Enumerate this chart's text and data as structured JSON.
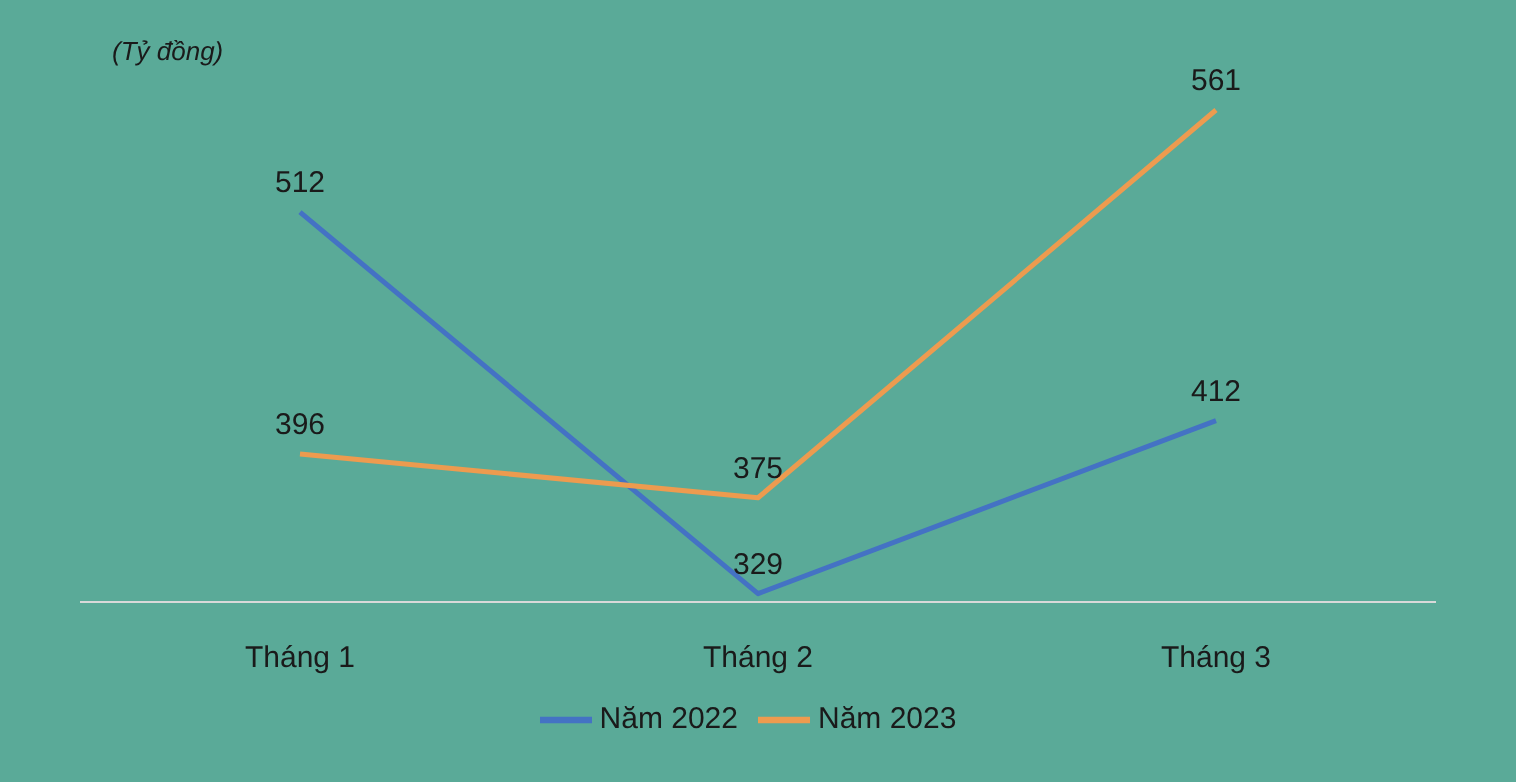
{
  "chart_data": {
    "type": "line",
    "ylabel": "(Tỷ đồng)",
    "categories": [
      "Tháng 1",
      "Tháng 2",
      "Tháng 3"
    ],
    "series": [
      {
        "name": "Năm 2022",
        "color": "#4472c4",
        "values": [
          512,
          329,
          412
        ]
      },
      {
        "name": "Năm 2023",
        "color": "#ed9b4f",
        "values": [
          396,
          375,
          561
        ]
      }
    ],
    "tick_labels": "x",
    "data_labels": true,
    "legend": "bottom",
    "marker": "none"
  }
}
